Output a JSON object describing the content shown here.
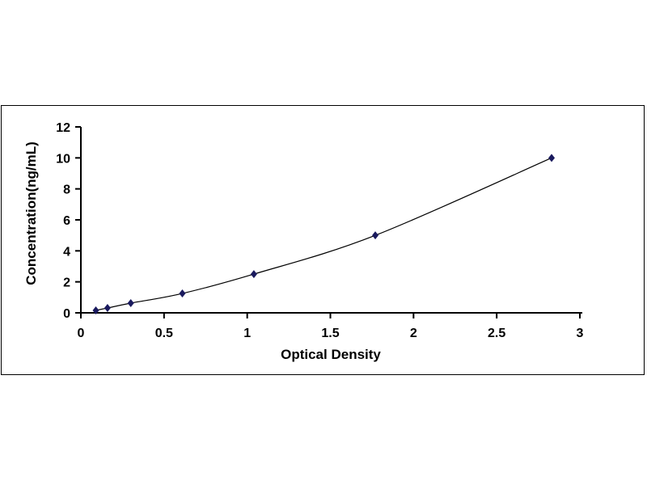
{
  "chart_data": {
    "type": "scatter",
    "title": "",
    "xlabel": "Optical Density",
    "ylabel": "Concentration(ng/mL)",
    "xlim": [
      0,
      3
    ],
    "ylim": [
      0,
      12
    ],
    "xticks": [
      "0",
      "0.5",
      "1",
      "1.5",
      "2",
      "2.5",
      "3"
    ],
    "yticks": [
      "0",
      "2",
      "4",
      "6",
      "8",
      "10",
      "12"
    ],
    "grid": false,
    "trendline": "smooth curve through points",
    "marker": "diamond",
    "color": "#1a1a5e",
    "points": [
      {
        "x": 0.09,
        "y": 0.156
      },
      {
        "x": 0.16,
        "y": 0.312
      },
      {
        "x": 0.3,
        "y": 0.625
      },
      {
        "x": 0.61,
        "y": 1.25
      },
      {
        "x": 1.04,
        "y": 2.5
      },
      {
        "x": 1.77,
        "y": 5
      },
      {
        "x": 2.83,
        "y": 10
      }
    ]
  }
}
